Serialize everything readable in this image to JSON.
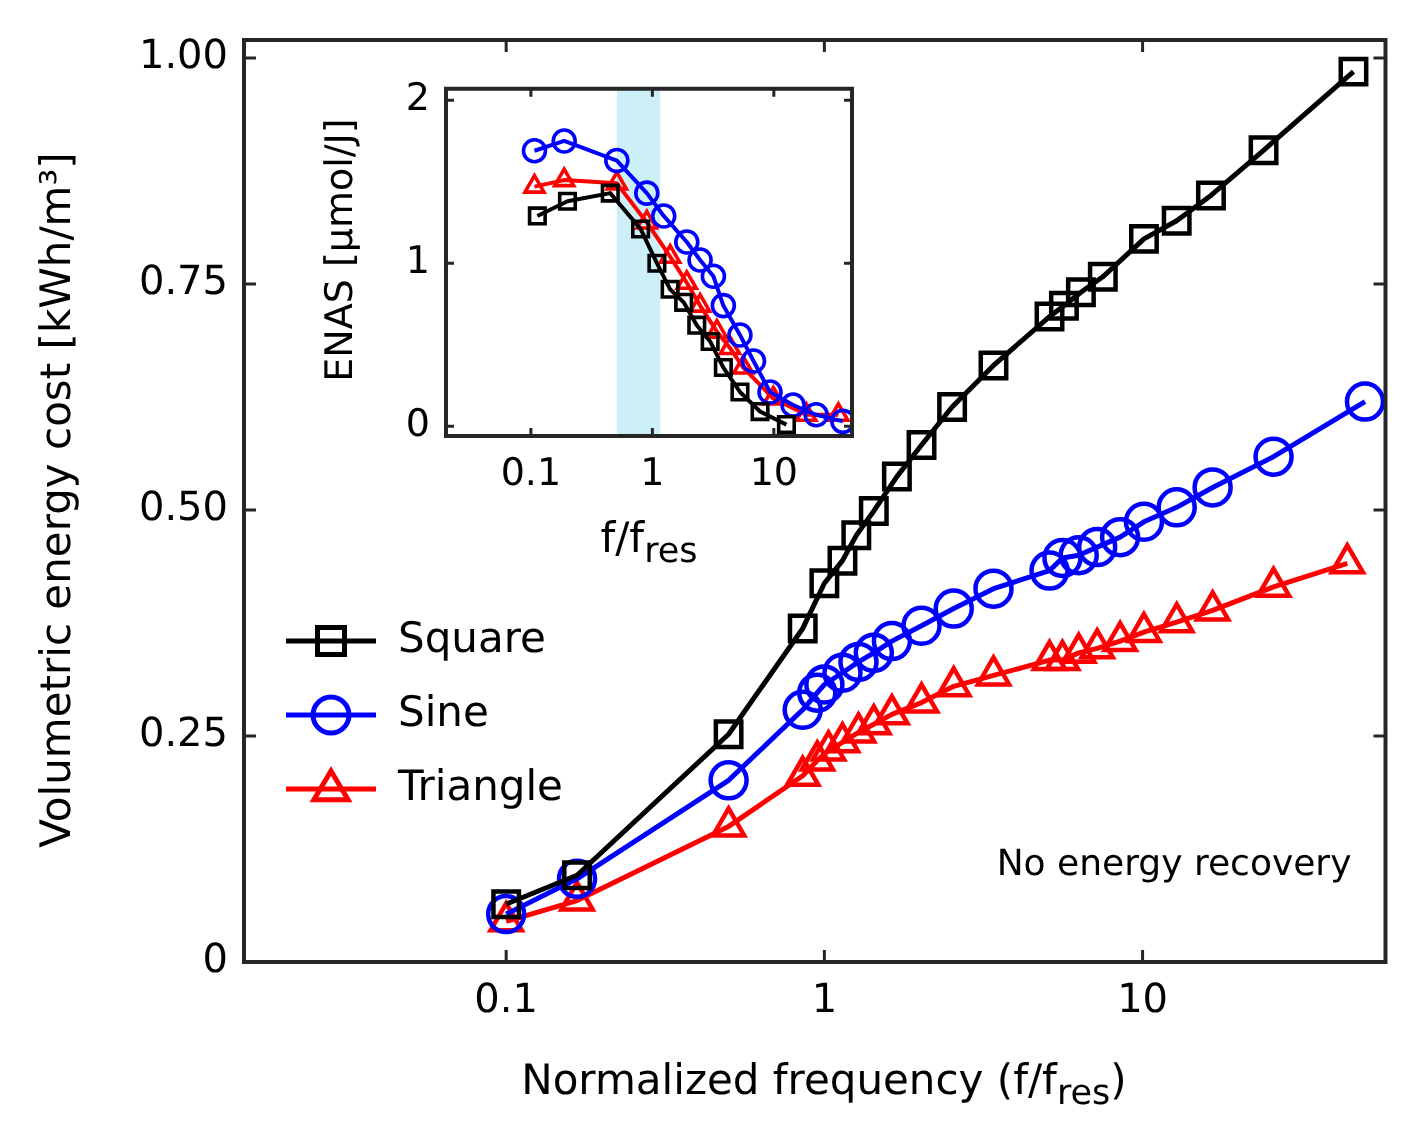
{
  "chart_data": [
    {
      "type": "line",
      "xlabel": "Normalized frequency (f/f$_{res}$)",
      "ylabel": "Volumetric energy cost [kWh/m³]",
      "log": "x",
      "xlim": [
        0.015,
        58
      ],
      "ylim": [
        0,
        1.02
      ],
      "xticks": [
        0.1,
        1,
        10
      ],
      "yticks": [
        0,
        0.25,
        {
          "value": 0.5,
          "label": "0.50"
        },
        0.75,
        {
          "value": 1,
          "label": "1.00"
        }
      ],
      "legend": "left",
      "annotations": [
        "No energy recovery"
      ],
      "series": [
        {
          "name": "Square",
          "color": "#000000",
          "marker": "square",
          "x": [
            0.1,
            0.167,
            0.5,
            0.855,
            1.0,
            1.14,
            1.26,
            1.43,
            1.69,
            2.02,
            2.52,
            3.4,
            5.1,
            5.66,
            6.4,
            7.5,
            10.1,
            12.8,
            16.4,
            24,
            46
          ],
          "values": [
            0.064,
            0.096,
            0.252,
            0.369,
            0.419,
            0.444,
            0.472,
            0.499,
            0.537,
            0.572,
            0.614,
            0.66,
            0.714,
            0.726,
            0.741,
            0.758,
            0.8,
            0.82,
            0.848,
            0.898,
            0.985
          ]
        },
        {
          "name": "Sine",
          "color": "#0000ff",
          "marker": "circle",
          "x": [
            0.1,
            0.167,
            0.5,
            0.855,
            0.95,
            1.0,
            1.14,
            1.28,
            1.43,
            1.63,
            2.02,
            2.55,
            3.4,
            5.1,
            5.6,
            6.3,
            7.2,
            8.5,
            10.1,
            12.8,
            16.6,
            25.8,
            50
          ],
          "values": [
            0.053,
            0.092,
            0.201,
            0.279,
            0.298,
            0.307,
            0.32,
            0.332,
            0.342,
            0.355,
            0.372,
            0.391,
            0.413,
            0.433,
            0.447,
            0.45,
            0.459,
            0.47,
            0.487,
            0.503,
            0.525,
            0.559,
            0.62
          ]
        },
        {
          "name": "Triangle",
          "color": "#ff0000",
          "marker": "triangle",
          "x": [
            0.1,
            0.167,
            0.5,
            0.855,
            0.95,
            1.03,
            1.14,
            1.28,
            1.43,
            1.63,
            2.02,
            2.55,
            3.4,
            5.1,
            5.6,
            6.3,
            7.2,
            8.5,
            10.1,
            12.8,
            16.6,
            25.8,
            44
          ],
          "values": [
            0.045,
            0.068,
            0.15,
            0.206,
            0.223,
            0.234,
            0.243,
            0.254,
            0.263,
            0.274,
            0.287,
            0.305,
            0.317,
            0.334,
            0.334,
            0.342,
            0.347,
            0.355,
            0.365,
            0.376,
            0.389,
            0.415,
            0.441
          ]
        }
      ]
    },
    {
      "type": "line",
      "xlabel": "f/f$_{res}$",
      "ylabel": "ENAS [µmol/J]",
      "log": "x",
      "xlim": [
        0.02,
        44
      ],
      "ylim": [
        -0.06,
        2.07
      ],
      "xticks": [
        0.1,
        1,
        10
      ],
      "yticks": [
        0,
        1,
        2
      ],
      "bands": [
        {
          "axis": "x",
          "from": 0.51,
          "to": 1.16,
          "color": "#cdeff8"
        }
      ],
      "series": [
        {
          "color": "#000000",
          "marker": "square",
          "x": [
            0.113,
            0.2,
            0.45,
            0.8,
            1.09,
            1.4,
            1.81,
            2.32,
            2.99,
            3.84,
            5.26,
            7.7,
            12.7
          ],
          "values": [
            1.29,
            1.38,
            1.43,
            1.21,
            1.0,
            0.84,
            0.76,
            0.62,
            0.52,
            0.36,
            0.21,
            0.09,
            0.01
          ]
        },
        {
          "color": "#0000ff",
          "marker": "circle",
          "x": [
            0.107,
            0.188,
            0.51,
            0.9,
            1.24,
            1.92,
            2.47,
            3.18,
            3.84,
            5.26,
            6.8,
            9.3,
            14.4,
            22.3,
            37
          ],
          "values": [
            1.69,
            1.75,
            1.63,
            1.43,
            1.29,
            1.13,
            1.02,
            0.92,
            0.74,
            0.56,
            0.4,
            0.21,
            0.13,
            0.07,
            0.03
          ]
        },
        {
          "color": "#ff0000",
          "marker": "triangle",
          "x": [
            0.107,
            0.188,
            0.51,
            0.9,
            1.4,
            1.92,
            2.47,
            3.4,
            4.35,
            5.6,
            9.9,
            18.5,
            34
          ],
          "values": [
            1.47,
            1.51,
            1.49,
            1.25,
            1.04,
            0.88,
            0.74,
            0.58,
            0.48,
            0.36,
            0.17,
            0.07,
            0.07
          ]
        }
      ]
    }
  ]
}
